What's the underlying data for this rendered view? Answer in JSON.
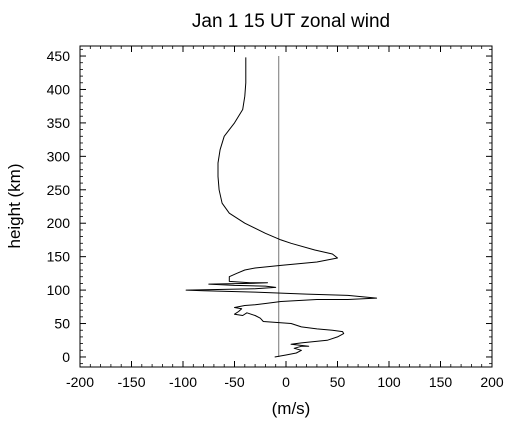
{
  "chart_data": {
    "type": "line",
    "title": "Jan  1 15 UT zonal wind",
    "xlabel": "(m/s)",
    "ylabel": "height (km)",
    "xlim": [
      -200,
      200
    ],
    "ylim": [
      -15,
      465
    ],
    "x_ticks": [
      -200,
      -150,
      -100,
      -50,
      0,
      50,
      100,
      150,
      200
    ],
    "y_ticks": [
      0,
      50,
      100,
      150,
      200,
      250,
      300,
      350,
      400,
      450
    ],
    "x_tick_labels": [
      "-200",
      "-150",
      "-100",
      "-50",
      "0",
      "50",
      "100",
      "150",
      "200"
    ],
    "y_tick_labels": [
      "0",
      "50",
      "100",
      "150",
      "200",
      "250",
      "300",
      "350",
      "400",
      "450"
    ],
    "grid": false,
    "reference_line_x": -7,
    "series": [
      {
        "color": "#000000",
        "points": [
          [
            -11,
            0
          ],
          [
            0,
            3
          ],
          [
            10,
            6
          ],
          [
            15,
            10
          ],
          [
            8,
            13
          ],
          [
            15,
            16
          ],
          [
            22,
            16
          ],
          [
            5,
            19
          ],
          [
            15,
            21
          ],
          [
            40,
            25
          ],
          [
            50,
            30
          ],
          [
            56,
            35
          ],
          [
            55,
            38
          ],
          [
            45,
            40
          ],
          [
            30,
            42
          ],
          [
            15,
            45
          ],
          [
            5,
            50
          ],
          [
            -22,
            53
          ],
          [
            -25,
            58
          ],
          [
            -30,
            62
          ],
          [
            -38,
            66
          ],
          [
            -42,
            62
          ],
          [
            -50,
            64
          ],
          [
            -46,
            68
          ],
          [
            -43,
            72
          ],
          [
            -50,
            74
          ],
          [
            -40,
            77
          ],
          [
            -30,
            78
          ],
          [
            -20,
            80
          ],
          [
            -5,
            83
          ],
          [
            30,
            86
          ],
          [
            60,
            86
          ],
          [
            88,
            88
          ],
          [
            60,
            92
          ],
          [
            20,
            94
          ],
          [
            -30,
            97
          ],
          [
            -80,
            99
          ],
          [
            -97,
            100
          ],
          [
            -30,
            102
          ],
          [
            -10,
            104
          ],
          [
            -20,
            106
          ],
          [
            -50,
            107
          ],
          [
            -75,
            109
          ],
          [
            -35,
            110
          ],
          [
            -18,
            111
          ],
          [
            -35,
            111
          ],
          [
            -55,
            113
          ],
          [
            -55,
            120
          ],
          [
            -48,
            125
          ],
          [
            -40,
            130
          ],
          [
            -30,
            133
          ],
          [
            -5,
            137
          ],
          [
            30,
            142
          ],
          [
            50,
            148
          ],
          [
            45,
            154
          ],
          [
            28,
            160
          ],
          [
            5,
            170
          ],
          [
            -5,
            175
          ],
          [
            -20,
            185
          ],
          [
            -40,
            200
          ],
          [
            -55,
            215
          ],
          [
            -62,
            230
          ],
          [
            -65,
            250
          ],
          [
            -66,
            270
          ],
          [
            -66,
            290
          ],
          [
            -64,
            310
          ],
          [
            -60,
            330
          ],
          [
            -50,
            350
          ],
          [
            -42,
            370
          ],
          [
            -40,
            390
          ],
          [
            -39,
            410
          ],
          [
            -39,
            430
          ],
          [
            -39,
            448
          ]
        ]
      }
    ]
  }
}
